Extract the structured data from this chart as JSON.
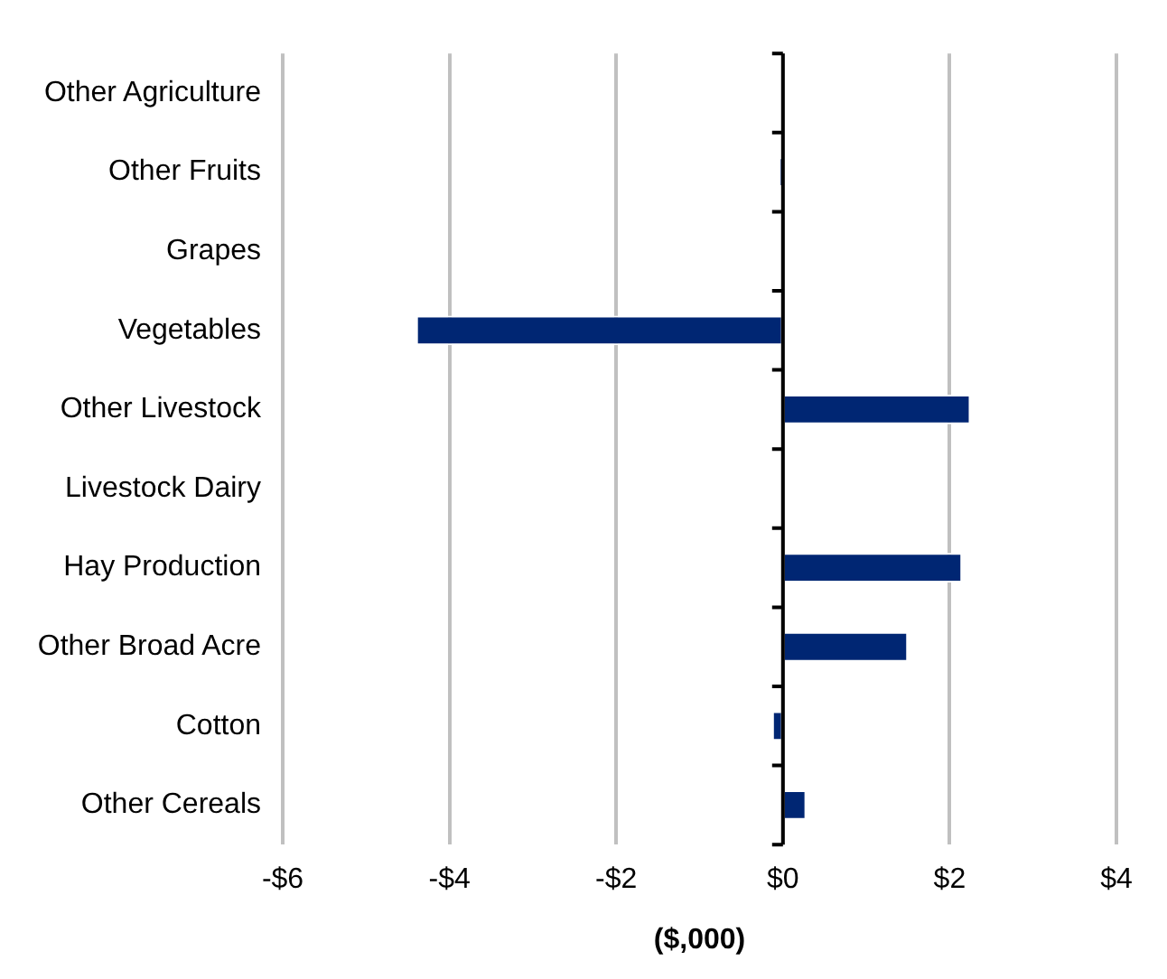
{
  "chart_data": {
    "type": "bar",
    "orientation": "horizontal",
    "xlabel": "($,000)",
    "categories": [
      "Other Agriculture",
      "Other Fruits",
      "Grapes",
      "Vegetables",
      "Other Livestock",
      "Livestock Dairy",
      "Hay Production",
      "Other Broad Acre",
      "Cotton",
      "Other Cereals"
    ],
    "values": [
      0,
      -0.04,
      0,
      -4.4,
      2.25,
      0,
      2.15,
      1.5,
      -0.13,
      0.28
    ],
    "color": "#002673",
    "xlim": [
      -6,
      4
    ],
    "xticks": [
      {
        "value": -6,
        "label": "-$6"
      },
      {
        "value": -4,
        "label": "-$4"
      },
      {
        "value": -2,
        "label": "-$2"
      },
      {
        "value": 0,
        "label": "$0"
      },
      {
        "value": 2,
        "label": "$2"
      },
      {
        "value": 4,
        "label": "$4"
      }
    ],
    "grid": "x"
  }
}
